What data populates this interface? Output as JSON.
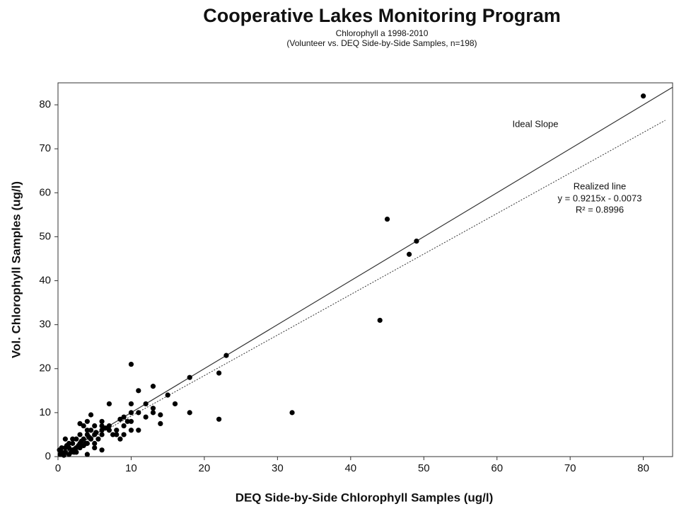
{
  "chart_data": {
    "type": "scatter",
    "title": "Cooperative Lakes Monitoring Program",
    "subtitle": [
      "Chlorophyll a 1998-2010",
      "(Volunteer vs. DEQ Side-by-Side Samples, n=198)"
    ],
    "x_label": "DEQ Side-by-Side Chlorophyll Samples (ug/l)",
    "y_label": "Vol. Chlorophyll Samples (ug/l)",
    "xlim": [
      0,
      84
    ],
    "ylim": [
      0,
      85
    ],
    "xticks": [
      0,
      10,
      20,
      30,
      40,
      50,
      60,
      70,
      80
    ],
    "yticks": [
      0,
      10,
      20,
      30,
      40,
      50,
      60,
      70,
      80
    ],
    "color": "#000000",
    "x": [
      80,
      45,
      48,
      49,
      44,
      32,
      23,
      22,
      22,
      18,
      18,
      16,
      15,
      14,
      14,
      13,
      13,
      13,
      12,
      12,
      11,
      11,
      11,
      10,
      10,
      10,
      10,
      10,
      9.5,
      9,
      9,
      8.5,
      8,
      8,
      7,
      7,
      7,
      6.5,
      6,
      6,
      6,
      6,
      5.5,
      5,
      5,
      5,
      4.5,
      4.5,
      4.5,
      4,
      4,
      4,
      4,
      4,
      3.5,
      3.5,
      3,
      3,
      3,
      3,
      2.5,
      2.5,
      2,
      2,
      2,
      1.5,
      1.5,
      1,
      1,
      1,
      0.5,
      0.5,
      0.3,
      1.5,
      2.5,
      3.5,
      5,
      6,
      7.5,
      8.5,
      9,
      0.2,
      0.8,
      1.2,
      2.2,
      3.2,
      4.2,
      5.2,
      6.2,
      1.8,
      2.8,
      3.8
    ],
    "values": [
      82,
      54,
      46,
      49,
      31,
      10,
      23,
      19,
      8.5,
      18,
      10,
      12,
      14,
      7.5,
      9.5,
      16,
      11,
      10,
      12,
      9,
      15,
      10,
      6,
      21,
      12,
      10,
      8,
      6,
      8,
      7,
      5,
      4,
      6,
      5,
      12,
      7,
      6,
      6.5,
      8,
      7,
      5,
      1.5,
      4,
      7,
      5,
      3,
      9.5,
      6,
      4,
      8,
      6,
      5,
      3,
      0.5,
      7,
      4,
      7.5,
      5,
      3,
      2,
      4,
      2,
      4,
      3,
      1.5,
      3,
      2,
      4,
      2,
      1,
      2,
      1,
      0.5,
      0.5,
      1,
      2.5,
      2,
      6,
      5,
      8.5,
      9,
      1.5,
      0.3,
      2.5,
      1,
      3.5,
      4.5,
      5.5,
      6.5,
      1,
      2.5,
      3
    ],
    "lines": [
      {
        "name": "Ideal Slope",
        "x": [
          0,
          84
        ],
        "values": [
          0,
          84
        ],
        "color": "#333333",
        "dashed": false
      },
      {
        "name": "Realized line",
        "x": [
          0,
          83
        ],
        "values": [
          -0.0073,
          76.48
        ],
        "color": "#333333",
        "dashed": true
      }
    ],
    "annotations": [
      "y = 0.9215x - 0.0073",
      "R² = 0.8996"
    ]
  }
}
